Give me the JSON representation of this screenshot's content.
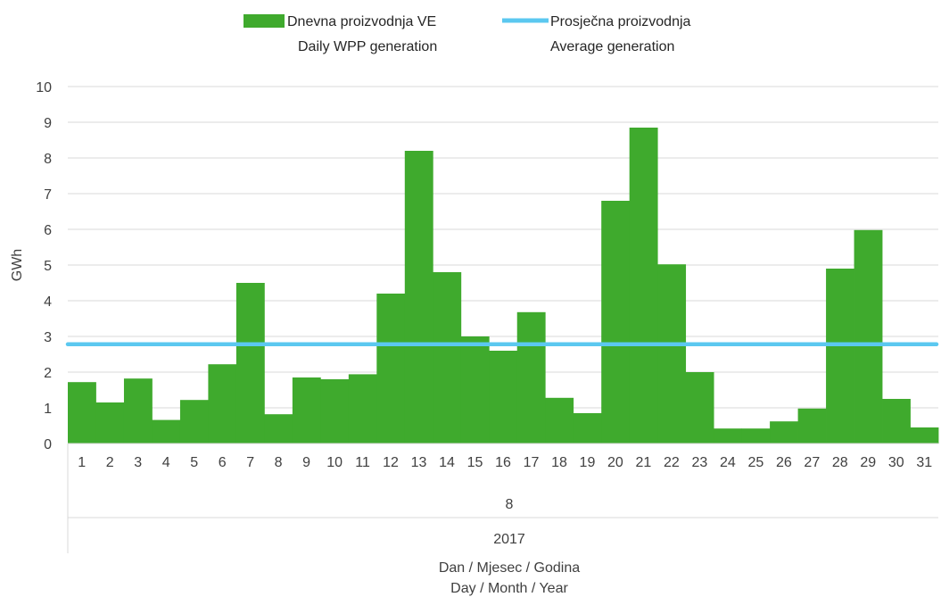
{
  "chart_data": {
    "type": "bar",
    "title": "",
    "ylabel": "GWh",
    "xlabel_lines": [
      "Dan / Mjesec / Godina",
      "Day / Month / Year"
    ],
    "month_label": "8",
    "year_label": "2017",
    "ylim": [
      0,
      10
    ],
    "yticks": [
      0,
      1,
      2,
      3,
      4,
      5,
      6,
      7,
      8,
      9,
      10
    ],
    "grid": true,
    "legend_position": "top",
    "categories": [
      "1",
      "2",
      "3",
      "4",
      "5",
      "6",
      "7",
      "8",
      "9",
      "10",
      "11",
      "12",
      "13",
      "14",
      "15",
      "16",
      "17",
      "18",
      "19",
      "20",
      "21",
      "22",
      "23",
      "24",
      "25",
      "26",
      "27",
      "28",
      "29",
      "30",
      "31"
    ],
    "series": [
      {
        "name": "Dnevna proizvodnja VE",
        "name_line2": "Daily WPP generation",
        "kind": "bar",
        "color": "#3faa2d",
        "values": [
          1.72,
          1.15,
          1.82,
          0.66,
          1.22,
          2.22,
          4.5,
          0.82,
          1.85,
          1.8,
          1.94,
          4.2,
          8.2,
          4.8,
          3.0,
          2.6,
          3.68,
          1.28,
          0.85,
          6.8,
          8.85,
          5.02,
          2.0,
          0.42,
          0.42,
          0.62,
          0.98,
          4.9,
          5.98,
          1.25,
          0.45
        ]
      },
      {
        "name": "Prosječna proizvodnja",
        "name_line2": "Average generation",
        "kind": "line",
        "color": "#5bc8f0",
        "value": 2.78
      }
    ]
  }
}
